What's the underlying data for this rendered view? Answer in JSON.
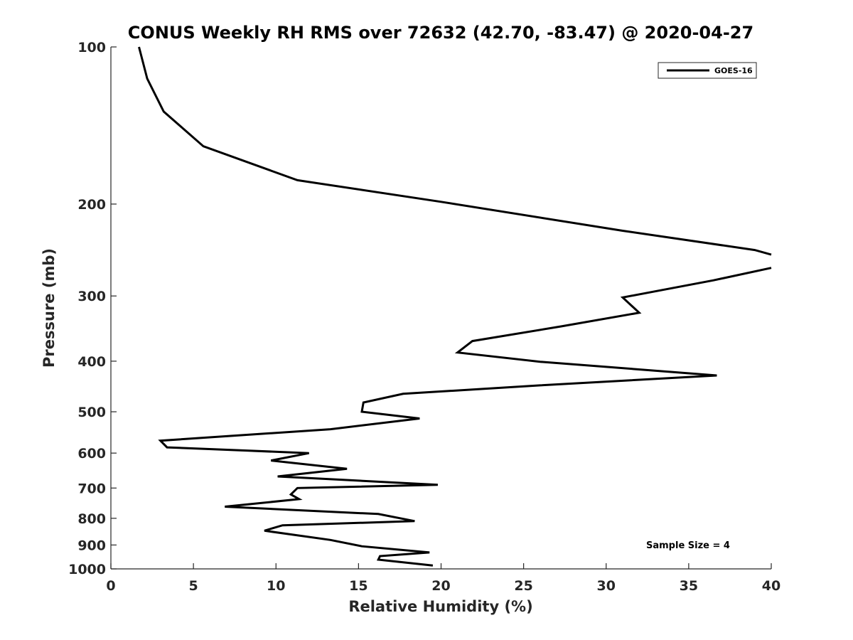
{
  "chart_data": {
    "type": "line",
    "title": "CONUS Weekly RH RMS over 72632 (42.70, -83.47) @ 2020-04-27",
    "xlabel": "Relative Humidity (%)",
    "ylabel": "Pressure (mb)",
    "xlim": [
      0,
      40
    ],
    "ylim": [
      100,
      1000
    ],
    "yscale": "log",
    "y_reversed": true,
    "xticks": [
      0,
      5,
      10,
      15,
      20,
      25,
      30,
      35,
      40
    ],
    "yticks": [
      100,
      200,
      300,
      400,
      500,
      600,
      700,
      800,
      900,
      1000
    ],
    "grid": false,
    "legend_position": "top-right",
    "annotation": "Sample Size = 4",
    "series": [
      {
        "name": "GOES-16",
        "color": "#000000",
        "points": [
          {
            "x": 1.7,
            "y": 100
          },
          {
            "x": 2.2,
            "y": 115
          },
          {
            "x": 3.2,
            "y": 133
          },
          {
            "x": 5.6,
            "y": 155
          },
          {
            "x": 11.3,
            "y": 180
          },
          {
            "x": 20.0,
            "y": 198
          },
          {
            "x": 31.0,
            "y": 225
          },
          {
            "x": 39.0,
            "y": 245
          },
          {
            "x": 40.0,
            "y": 250
          },
          {
            "x": null,
            "y": null
          },
          {
            "x": 40.0,
            "y": 265
          },
          {
            "x": 36.5,
            "y": 280
          },
          {
            "x": 31.0,
            "y": 302
          },
          {
            "x": 32.0,
            "y": 323
          },
          {
            "x": 27.3,
            "y": 343
          },
          {
            "x": 21.9,
            "y": 366
          },
          {
            "x": 21.0,
            "y": 385
          },
          {
            "x": 26.0,
            "y": 401
          },
          {
            "x": 36.7,
            "y": 426
          },
          {
            "x": 26.0,
            "y": 445
          },
          {
            "x": 17.7,
            "y": 462
          },
          {
            "x": 15.3,
            "y": 480
          },
          {
            "x": 15.2,
            "y": 500
          },
          {
            "x": 18.7,
            "y": 515
          },
          {
            "x": 13.3,
            "y": 540
          },
          {
            "x": 3.0,
            "y": 568
          },
          {
            "x": 3.4,
            "y": 585
          },
          {
            "x": 12.0,
            "y": 600
          },
          {
            "x": 9.7,
            "y": 620
          },
          {
            "x": 14.3,
            "y": 643
          },
          {
            "x": 10.1,
            "y": 665
          },
          {
            "x": 19.8,
            "y": 690
          },
          {
            "x": 11.3,
            "y": 700
          },
          {
            "x": 10.9,
            "y": 720
          },
          {
            "x": 11.4,
            "y": 735
          },
          {
            "x": 6.9,
            "y": 760
          },
          {
            "x": 16.2,
            "y": 785
          },
          {
            "x": 18.4,
            "y": 810
          },
          {
            "x": 10.4,
            "y": 825
          },
          {
            "x": 9.3,
            "y": 845
          },
          {
            "x": 13.3,
            "y": 880
          },
          {
            "x": 15.2,
            "y": 905
          },
          {
            "x": 19.3,
            "y": 930
          },
          {
            "x": 16.3,
            "y": 945
          },
          {
            "x": 16.2,
            "y": 960
          },
          {
            "x": 19.5,
            "y": 985
          }
        ]
      }
    ]
  }
}
